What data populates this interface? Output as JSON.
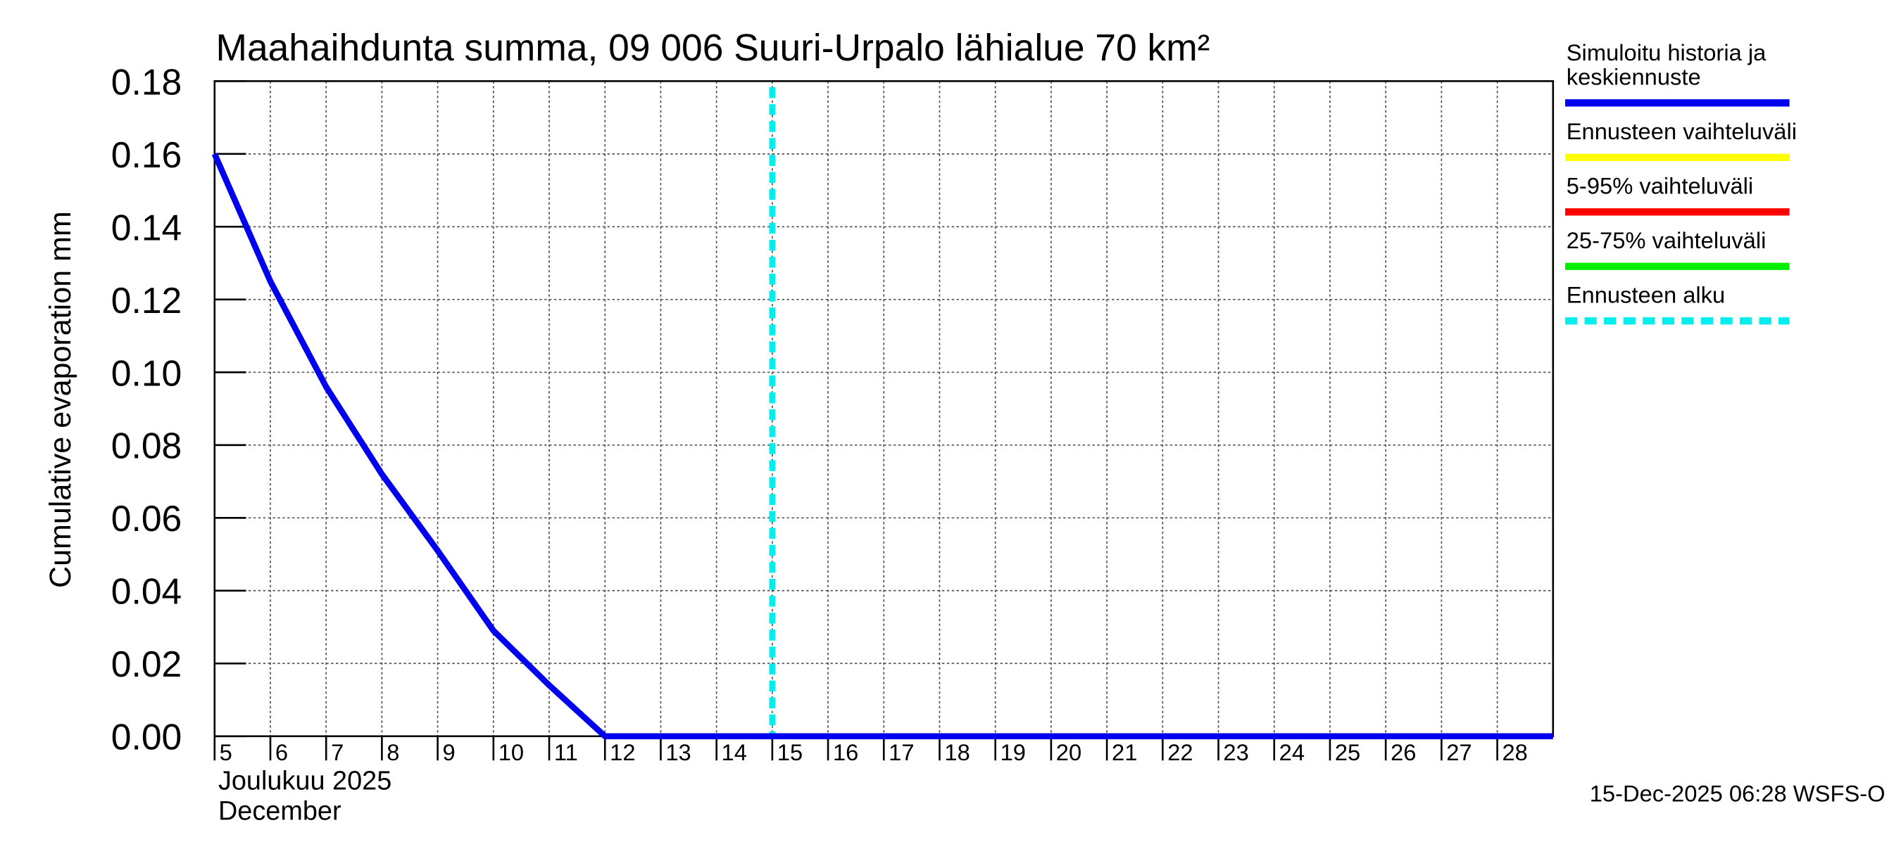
{
  "chart_data": {
    "type": "line",
    "title": "Maahaihdunta summa, 09 006 Suuri-Urpalo lähialue 70 km²",
    "ylabel": "Cumulative evaporation   mm",
    "xlabel_lines": [
      "Joulukuu  2025",
      "December"
    ],
    "footer": "15-Dec-2025 06:28 WSFS-O",
    "x": [
      5,
      6,
      7,
      8,
      9,
      10,
      11,
      12,
      13,
      14,
      15,
      16,
      17,
      18,
      19,
      20,
      21,
      22,
      23,
      24,
      25,
      26,
      27,
      28,
      29
    ],
    "series": [
      {
        "name": [
          "Simuloitu historia ja",
          "keskiennuste"
        ],
        "color": "#0000ee",
        "values": [
          0.16,
          0.125,
          0.096,
          0.072,
          0.051,
          0.029,
          0.014,
          0.0,
          0.0,
          0.0,
          0.0,
          0.0,
          0.0,
          0.0,
          0.0,
          0.0,
          0.0,
          0.0,
          0.0,
          0.0,
          0.0,
          0.0,
          0.0,
          0.0,
          0.0
        ]
      }
    ],
    "legend": [
      {
        "name": [
          "Simuloitu historia ja",
          "keskiennuste"
        ],
        "color": "#0000ee",
        "dashed": false
      },
      {
        "name": [
          "Ennusteen vaihteluväli"
        ],
        "color": "#ffff00",
        "dashed": false
      },
      {
        "name": [
          "5-95% vaihteluväli"
        ],
        "color": "#ff0000",
        "dashed": false
      },
      {
        "name": [
          "25-75% vaihteluväli"
        ],
        "color": "#00ee00",
        "dashed": false
      },
      {
        "name": [
          "Ennusteen alku"
        ],
        "color": "#00eeee",
        "dashed": true
      }
    ],
    "forecast_start": 15,
    "forecast_color": "#00eeee",
    "xlim": [
      5,
      29
    ],
    "xticks": [
      5,
      6,
      7,
      8,
      9,
      10,
      11,
      12,
      13,
      14,
      15,
      16,
      17,
      18,
      19,
      20,
      21,
      22,
      23,
      24,
      25,
      26,
      27,
      28
    ],
    "ylim": [
      0,
      0.18
    ],
    "yticks": [
      {
        "value": 0,
        "label": "0.00"
      },
      {
        "value": 0.02,
        "label": "0.02"
      },
      {
        "value": 0.04,
        "label": "0.04"
      },
      {
        "value": 0.06,
        "label": "0.06"
      },
      {
        "value": 0.08,
        "label": "0.08"
      },
      {
        "value": 0.1,
        "label": "0.10"
      },
      {
        "value": 0.12,
        "label": "0.12"
      },
      {
        "value": 0.14,
        "label": "0.14"
      },
      {
        "value": 0.16,
        "label": "0.16"
      },
      {
        "value": 0.18,
        "label": "0.18"
      }
    ],
    "grid": true
  }
}
